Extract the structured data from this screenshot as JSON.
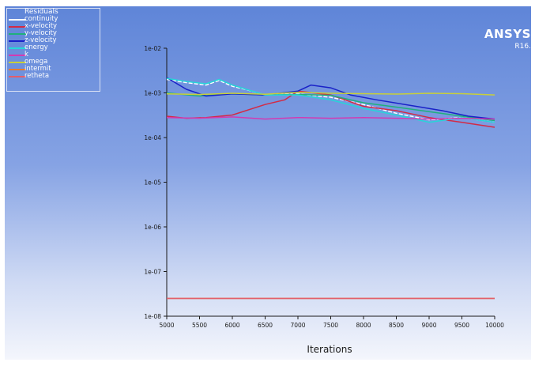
{
  "brand": {
    "name": "ANSYS",
    "version": "R16."
  },
  "chart_data": {
    "type": "line",
    "title": "",
    "xlabel": "Iterations",
    "ylabel": "",
    "xlim": [
      5000,
      10000
    ],
    "ylim": [
      1e-08,
      0.01
    ],
    "yscale": "log",
    "xticks": [
      "5000",
      "5500",
      "6000",
      "6500",
      "7000",
      "7500",
      "8000",
      "8500",
      "9000",
      "9500",
      "10000"
    ],
    "yticks": [
      "1e-02",
      "1e-03",
      "1e-04",
      "1e-05",
      "1e-06",
      "1e-07",
      "1e-08"
    ],
    "legend_title": "Residuals",
    "legend_position": "top-left",
    "series": [
      {
        "name": "continuity",
        "color": "#ffffff",
        "dashed": true,
        "x": [
          5000,
          5300,
          5600,
          5800,
          6000,
          6200,
          6500,
          7000,
          7500,
          8000,
          8500,
          9000,
          9500,
          10000
        ],
        "y": [
          0.002,
          0.0017,
          0.0015,
          0.0019,
          0.0014,
          0.0012,
          0.0009,
          0.00095,
          0.0008,
          0.00055,
          0.00035,
          0.00025,
          0.00028,
          0.00022
        ]
      },
      {
        "name": "x-velocity",
        "color": "#d32a45",
        "x": [
          5000,
          5300,
          5600,
          6000,
          6500,
          6800,
          7000,
          7500,
          8000,
          8500,
          9000,
          9500,
          10000
        ],
        "y": [
          0.0003,
          0.00027,
          0.00028,
          0.00032,
          0.00055,
          0.0007,
          0.0011,
          0.0009,
          0.0005,
          0.0004,
          0.00028,
          0.00022,
          0.00017
        ]
      },
      {
        "name": "y-velocity",
        "color": "#1fb07c",
        "x": [
          5000,
          5500,
          6000,
          6500,
          7000,
          7500,
          8000,
          8500,
          9000,
          9500,
          10000
        ],
        "y": [
          0.001,
          0.00085,
          0.00095,
          0.0009,
          0.00092,
          0.00088,
          0.0006,
          0.00048,
          0.00038,
          0.0003,
          0.00024
        ]
      },
      {
        "name": "z-velocity",
        "color": "#1a22c8",
        "x": [
          5000,
          5300,
          5600,
          6000,
          6500,
          7000,
          7200,
          7500,
          7800,
          8200,
          8800,
          9200,
          9600,
          10000
        ],
        "y": [
          0.0022,
          0.0012,
          0.00085,
          0.00095,
          0.0009,
          0.0011,
          0.0015,
          0.0013,
          0.0009,
          0.0007,
          0.0005,
          0.0004,
          0.0003,
          0.00026
        ]
      },
      {
        "name": "energy",
        "color": "#26d6d8",
        "x": [
          5000,
          5300,
          5600,
          5800,
          6000,
          6500,
          7000,
          7500,
          8000,
          8500,
          9000,
          9500,
          10000
        ],
        "y": [
          0.0021,
          0.0018,
          0.0016,
          0.002,
          0.0015,
          0.0009,
          0.0009,
          0.0007,
          0.00045,
          0.00032,
          0.00022,
          0.00028,
          0.00022
        ]
      },
      {
        "name": "k",
        "color": "#d23ab2",
        "x": [
          5000,
          5500,
          6000,
          6500,
          7000,
          7500,
          8000,
          8500,
          9000,
          9500,
          10000
        ],
        "y": [
          0.00028,
          0.00027,
          0.00029,
          0.00026,
          0.00028,
          0.00027,
          0.00028,
          0.00027,
          0.00026,
          0.00027,
          0.00026
        ]
      },
      {
        "name": "omega",
        "color": "#c8cf3a",
        "x": [
          5000,
          5500,
          6000,
          6500,
          7000,
          7500,
          8000,
          8500,
          9000,
          9500,
          10000
        ],
        "y": [
          0.00095,
          0.00092,
          0.00098,
          0.00093,
          0.00103,
          0.00098,
          0.00096,
          0.00094,
          0.00098,
          0.00096,
          0.0009
        ]
      },
      {
        "name": "intermit",
        "color": "#e8792c",
        "x": [
          5000,
          10000
        ],
        "y": [
          2.5e-08,
          2.5e-08
        ]
      },
      {
        "name": "retheta",
        "color": "#e35d6a",
        "x": [
          5000,
          10000
        ],
        "y": [
          2.5e-08,
          2.5e-08
        ]
      }
    ]
  }
}
